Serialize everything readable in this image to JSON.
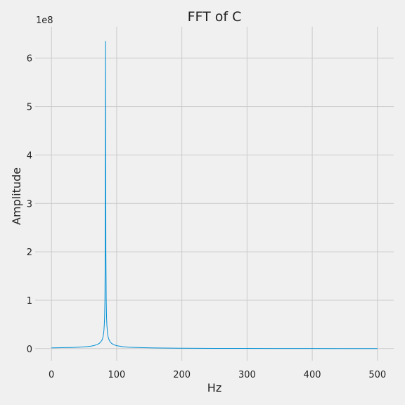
{
  "chart_data": {
    "type": "line",
    "title": "FFT of C",
    "xlabel": "Hz",
    "ylabel": "Amplitude",
    "y_offset_label": "1e8",
    "y_multiplier": 100000000,
    "xlim": [
      -25,
      525
    ],
    "ylim": [
      -25000000,
      665000000
    ],
    "x_ticks": [
      0,
      100,
      200,
      300,
      400,
      500
    ],
    "x_tick_labels": [
      "0",
      "100",
      "200",
      "300",
      "400",
      "500"
    ],
    "y_ticks": [
      0,
      100000000,
      200000000,
      300000000,
      400000000,
      500000000,
      600000000
    ],
    "y_tick_labels": [
      "0",
      "1",
      "2",
      "3",
      "4",
      "5",
      "6"
    ],
    "grid": true,
    "colors": {
      "background": "#f0f0f0",
      "grid": "#cbcbcb",
      "line": "#008fd5",
      "text": "#222222"
    },
    "series": [
      {
        "x": [
          0,
          10,
          20,
          30,
          40,
          50,
          55,
          60,
          65,
          70,
          73,
          75,
          77,
          78,
          79,
          79.5,
          80,
          80.5,
          81,
          81.5,
          82,
          82.5,
          83,
          83.5,
          84,
          84.5,
          85,
          86,
          87,
          88,
          90,
          92,
          95,
          100,
          110,
          120,
          140,
          160,
          200,
          250,
          300,
          350,
          400,
          450,
          500
        ],
        "y": [
          1500000,
          1700000,
          2000000,
          2300000,
          2800000,
          3600000,
          4200000,
          5000000,
          6200000,
          8300000,
          10500000,
          12800000,
          16400000,
          19300000,
          23700000,
          27000000,
          31800000,
          38200000,
          48500000,
          65000000,
          100000000,
          200000000,
          635000000,
          200000000,
          100000000,
          65000000,
          48500000,
          31800000,
          23700000,
          19300000,
          14000000,
          11000000,
          8300000,
          6000000,
          3800000,
          2800000,
          1800000,
          1300000,
          800000,
          500000,
          350000,
          250000,
          180000,
          130000,
          100000
        ]
      }
    ]
  }
}
